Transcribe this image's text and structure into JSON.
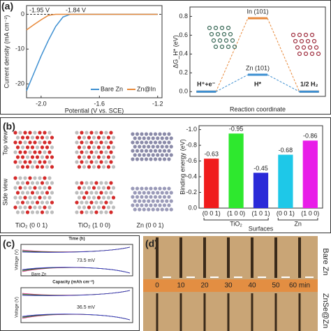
{
  "chart_data": [
    {
      "type": "line",
      "x_label": "Potential (V vs. SCE)",
      "y_label": "Current density (mA cm⁻²)",
      "xlim": [
        -2.1,
        -1.17
      ],
      "xticks": [
        {
          "value": -2,
          "label": "-2.0"
        },
        -1.6,
        -1.2
      ],
      "ylim": [
        -24,
        2.5
      ],
      "yticks": [
        0,
        -10,
        -20
      ],
      "x": [
        -2.1,
        -2.05,
        -2.0,
        -1.95,
        -1.9,
        -1.85,
        -1.8,
        -1.7,
        -1.6,
        -1.5,
        -1.4,
        -1.3,
        -1.2
      ],
      "series": [
        {
          "name": "Bare Zn",
          "color": "#3d8fd1",
          "values": [
            -22,
            -17,
            -12,
            -7.5,
            -3.5,
            -0.8,
            0,
            0,
            0,
            0,
            0,
            0,
            0
          ]
        },
        {
          "name": "Zn@In",
          "color": "#e8893a",
          "values": [
            -4.5,
            -3,
            -1.6,
            -0.3,
            0,
            0,
            0,
            0,
            0,
            0,
            0,
            0,
            0
          ]
        }
      ],
      "annotations": [
        {
          "text": "-1.95 V",
          "color": "#e8893a"
        },
        {
          "text": "-1.84 V",
          "color": "#3d8fd1"
        }
      ],
      "legend": "lower right"
    },
    {
      "type": "energy",
      "x_label": "Reaction coordinate",
      "y_label": "ΔG_H* (eV)",
      "categories": [
        "H⁺+e⁻",
        "H*",
        "1/2 H₂"
      ],
      "ylim": [
        -0.05,
        0.9
      ],
      "yticks": [
        {
          "value": 0,
          "label": "0.0"
        },
        0.2,
        0.4,
        0.6,
        0.8
      ],
      "series": [
        {
          "name": "In (101)",
          "color": "#e8893a",
          "values": [
            0,
            0.78,
            0
          ]
        },
        {
          "name": "Zn (101)",
          "color": "#3d8fd1",
          "values": [
            0,
            0.18,
            0
          ]
        }
      ]
    },
    {
      "type": "bar",
      "x_label": "Surfaces",
      "y_label": "Binding energy (eV)",
      "categories": [
        "(0 0 1)",
        "(1 0 0)",
        "(1 0 1)",
        "(0 0 1)",
        "(1 0 0)"
      ],
      "values": [
        -0.63,
        -0.95,
        -0.45,
        -0.68,
        -0.86
      ],
      "colors": [
        "#f01c1c",
        "#2ee82e",
        "#2a2ad8",
        "#1ec8e8",
        "#e81ee8"
      ],
      "groups": [
        "TiO₂",
        "Zn"
      ],
      "ylim": [
        0,
        -1.05
      ],
      "yticks": [
        {
          "value": -1,
          "label": "-1.0"
        },
        -0.8,
        -0.6,
        -0.4,
        -0.2,
        {
          "value": 0,
          "label": "0.0"
        }
      ]
    }
  ],
  "panels": {
    "a": {
      "label": "(a)"
    },
    "b": {
      "label": "(b)",
      "views": [
        "Top view",
        "Side view"
      ],
      "captions": [
        "TiO₂ (0 0 1)",
        "TiO₂ (1 0 0)",
        "Zn (0 0 1)"
      ]
    },
    "c": {
      "label": "(c)",
      "top_axis": "Time (h)",
      "x_label": "Capacity (mAh cm⁻²)",
      "y_label": "Voltage (V)",
      "notes": [
        "73.5 mV",
        "36.5 mV",
        "Bare Zn"
      ]
    },
    "d": {
      "label": "(d)",
      "times": [
        "0",
        "10",
        "20",
        "30",
        "40",
        "50",
        "60 min"
      ],
      "rows": [
        "Bare Zn",
        "ZnSe@Zn"
      ]
    }
  }
}
